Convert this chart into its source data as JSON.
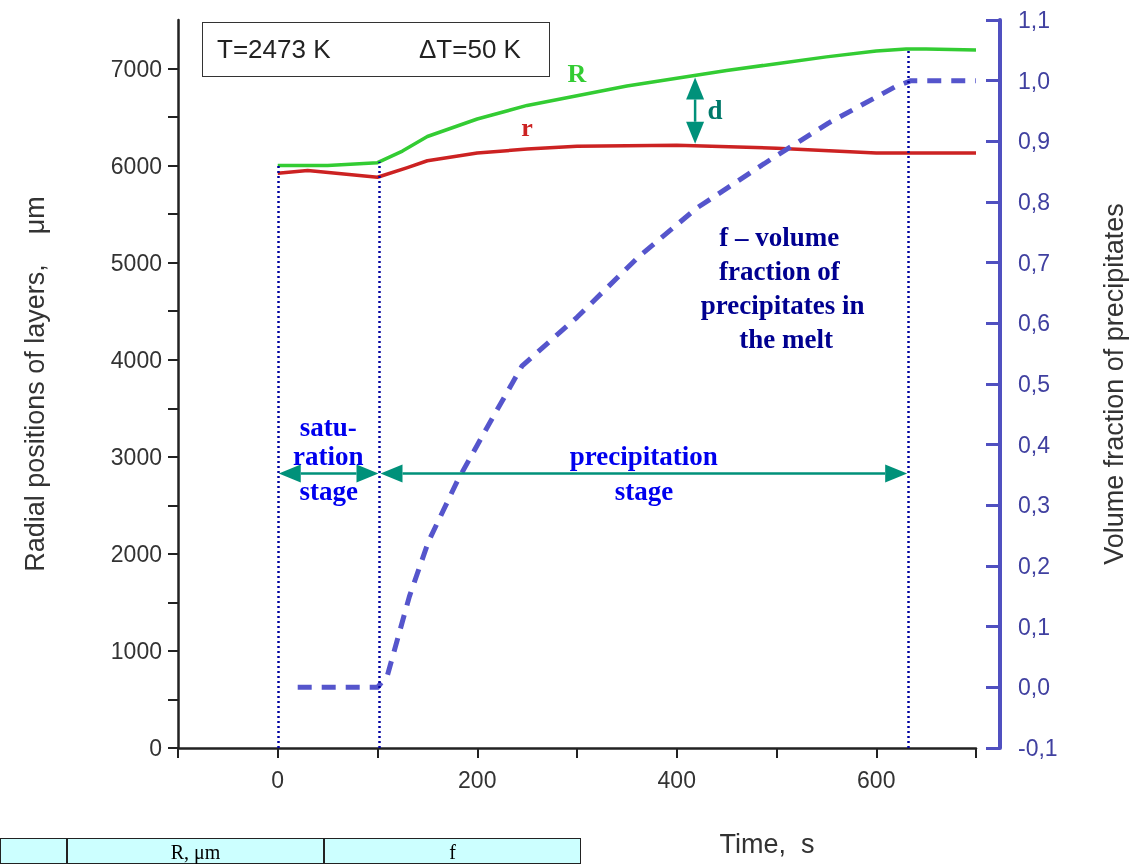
{
  "chart_data": {
    "type": "line",
    "xlabel": "Time,  s",
    "ylabel": "Radial positions of layers,    μm",
    "y2label": "Volume fraction of precipitates",
    "xlim": [
      -100,
      700
    ],
    "xticks": [
      {
        "value": -100,
        "label": null
      },
      0,
      {
        "value": 100,
        "label": null
      },
      200,
      {
        "value": 300,
        "label": null
      },
      400,
      {
        "value": 500,
        "label": null
      },
      600,
      {
        "value": 700,
        "label": null
      }
    ],
    "ylim": [
      0,
      7500
    ],
    "yticks": [
      0,
      {
        "value": 500,
        "label": null
      },
      1000,
      {
        "value": 1500,
        "label": null
      },
      2000,
      {
        "value": 2500,
        "label": null
      },
      3000,
      {
        "value": 3500,
        "label": null
      },
      4000,
      {
        "value": 4500,
        "label": null
      },
      5000,
      {
        "value": 5500,
        "label": null
      },
      6000,
      {
        "value": 6500,
        "label": null
      },
      7000
    ],
    "y2lim": [
      -0.1,
      1.1
    ],
    "y2ticks": [
      {
        "value": -0.1,
        "label": "-0,1"
      },
      {
        "value": 0,
        "label": "0,0"
      },
      {
        "value": 0.1,
        "label": "0,1"
      },
      {
        "value": 0.2,
        "label": "0,2"
      },
      {
        "value": 0.3,
        "label": "0,3"
      },
      {
        "value": 0.4,
        "label": "0,4"
      },
      {
        "value": 0.5,
        "label": "0,5"
      },
      {
        "value": 0.6,
        "label": "0,6"
      },
      {
        "value": 0.7,
        "label": "0,7"
      },
      {
        "value": 0.8,
        "label": "0,8"
      },
      {
        "value": 0.9,
        "label": "0,9"
      },
      {
        "value": 1.0,
        "label": "1,0"
      },
      {
        "value": 1.1,
        "label": "1,1"
      }
    ],
    "marker": "none",
    "series": [
      {
        "name": "R",
        "color": "#33cc33",
        "x": [
          0,
          50,
          100,
          125,
          150,
          200,
          250,
          300,
          350,
          400,
          450,
          500,
          550,
          600,
          630,
          650,
          700
        ],
        "values": [
          6000,
          6000,
          6030,
          6150,
          6300,
          6480,
          6620,
          6720,
          6820,
          6900,
          6980,
          7050,
          7120,
          7180,
          7200,
          7200,
          7190
        ]
      },
      {
        "name": "r",
        "color": "#cc2222",
        "x": [
          0,
          30,
          100,
          130,
          150,
          200,
          250,
          300,
          400,
          500,
          600,
          700
        ],
        "values": [
          5920,
          5950,
          5880,
          5980,
          6050,
          6130,
          6170,
          6200,
          6210,
          6180,
          6130,
          6130
        ]
      },
      {
        "name": "f – volume fraction of precipitates in the melt",
        "color": "#5555cc",
        "axis": "y2",
        "line_style": "dashed",
        "x": [
          20,
          100,
          110,
          132,
          151,
          180,
          207,
          245,
          300,
          362,
          420,
          494,
          552,
          619,
          635,
          700
        ],
        "values": [
          0,
          0,
          0.02,
          0.15,
          0.24,
          0.34,
          0.42,
          0.53,
          0.61,
          0.71,
          0.79,
          0.87,
          0.93,
          0.99,
          1.0,
          1.0
        ]
      }
    ],
    "ref_lines": [
      {
        "axis": "x",
        "value": 0,
        "color": "#0000a0",
        "line_style": "dotted"
      },
      {
        "axis": "x",
        "value": 102,
        "color": "#0000a0",
        "line_style": "dotted"
      },
      {
        "axis": "x",
        "value": 632,
        "color": "#0000a0",
        "line_style": "dotted"
      }
    ],
    "annotations": [
      "T=2473 K",
      "ΔT=50 K",
      "d",
      "satu-\nration\nstage",
      "precipitation\nstage",
      "R, μm",
      "f"
    ]
  }
}
